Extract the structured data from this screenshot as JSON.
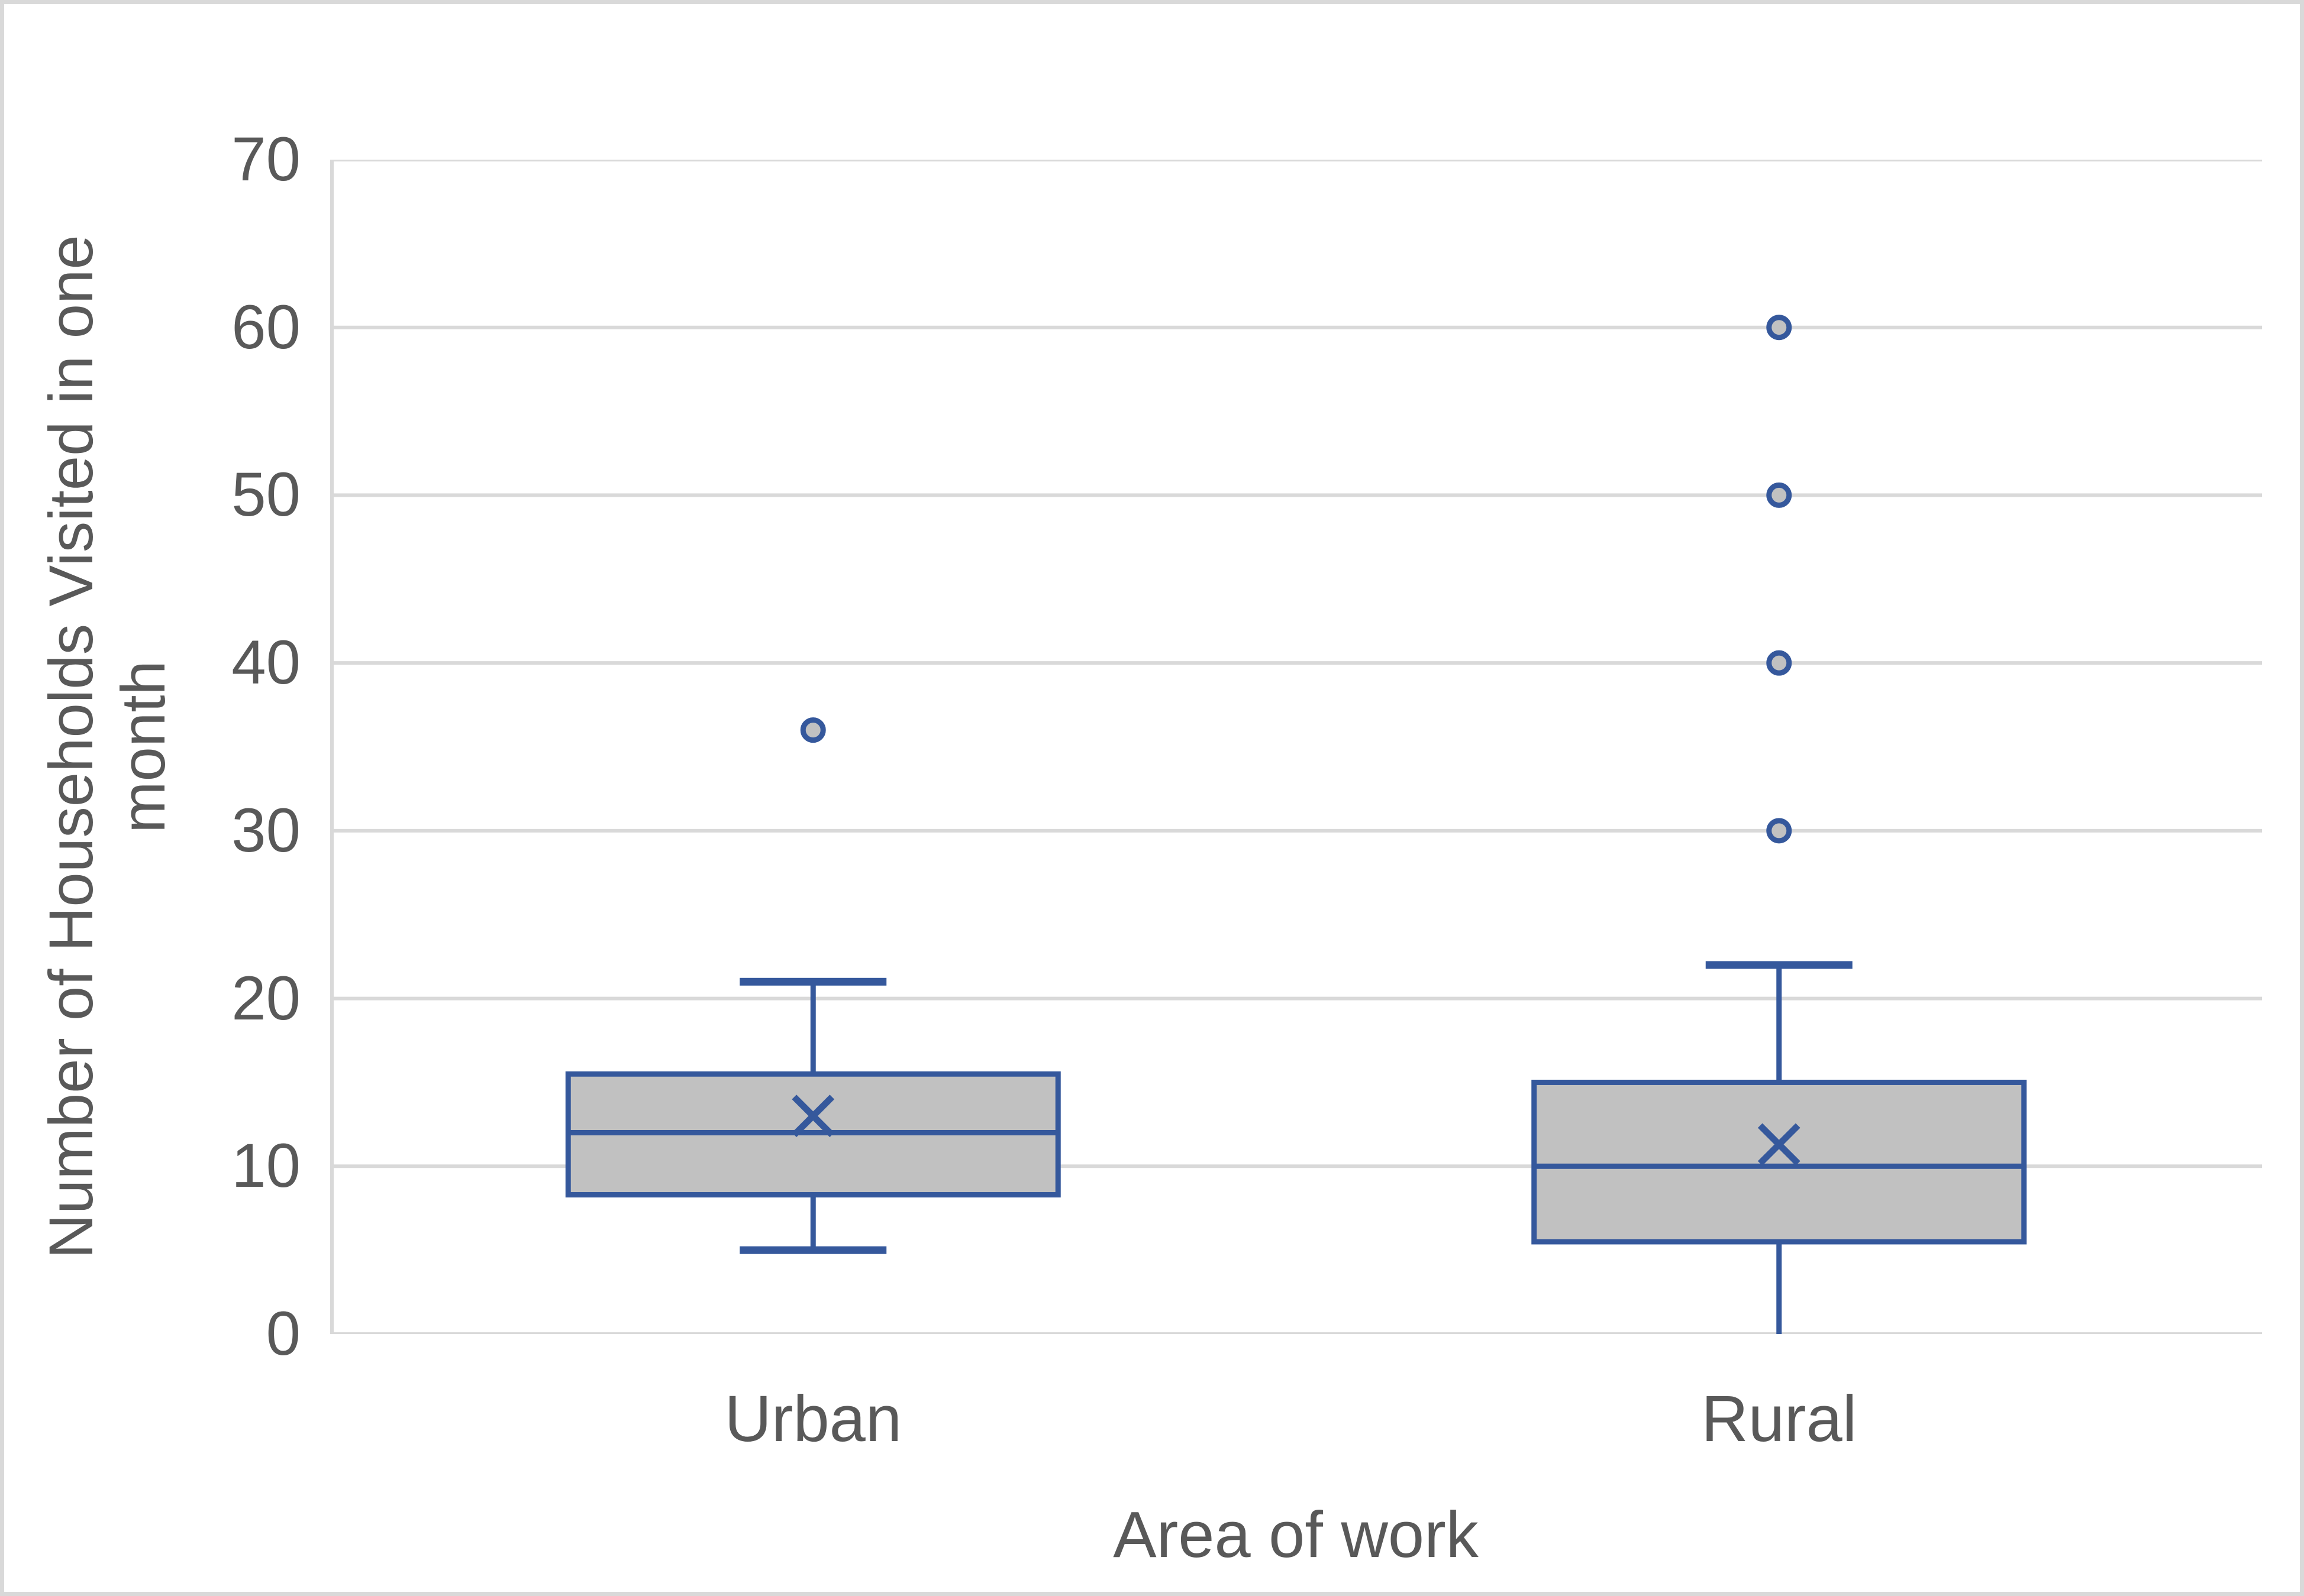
{
  "chart_data": {
    "type": "boxplot",
    "title": "",
    "xlabel": "Area of work",
    "ylabel": "Number of Households Visited in one month",
    "ylabel_lines": [
      "Number of Households Visited in one",
      "month"
    ],
    "ylim": [
      0,
      70
    ],
    "y_ticks": [
      0,
      10,
      20,
      30,
      40,
      50,
      60,
      70
    ],
    "grid": "horizontal-major",
    "legend": "none",
    "categories": [
      "Urban",
      "Rural"
    ],
    "series": [
      {
        "name": "Urban",
        "whisker_low": 5,
        "q1": 8.3,
        "median": 12,
        "q3": 15.5,
        "whisker_high": 21,
        "mean": 13,
        "outliers": [
          36
        ],
        "bottom_cap": true,
        "top_cap": true
      },
      {
        "name": "Rural",
        "whisker_low": 0,
        "q1": 5.5,
        "median": 10,
        "q3": 15,
        "whisker_high": 22,
        "mean": 11.3,
        "outliers": [
          30,
          40,
          50,
          60
        ],
        "bottom_cap": false,
        "top_cap": true
      }
    ],
    "colors": {
      "box_border": "#35589C",
      "box_fill": "#C1C1C1",
      "whisker": "#35589C",
      "mean_marker": "#35589C",
      "outlier_stroke": "#35589C",
      "outlier_fill": "#C1C1C1",
      "gridline": "#D9D9D9",
      "axis_line": "#D9D9D9",
      "text": "#595959",
      "frame": "#D9D9D9",
      "background": "#FFFFFF"
    }
  }
}
